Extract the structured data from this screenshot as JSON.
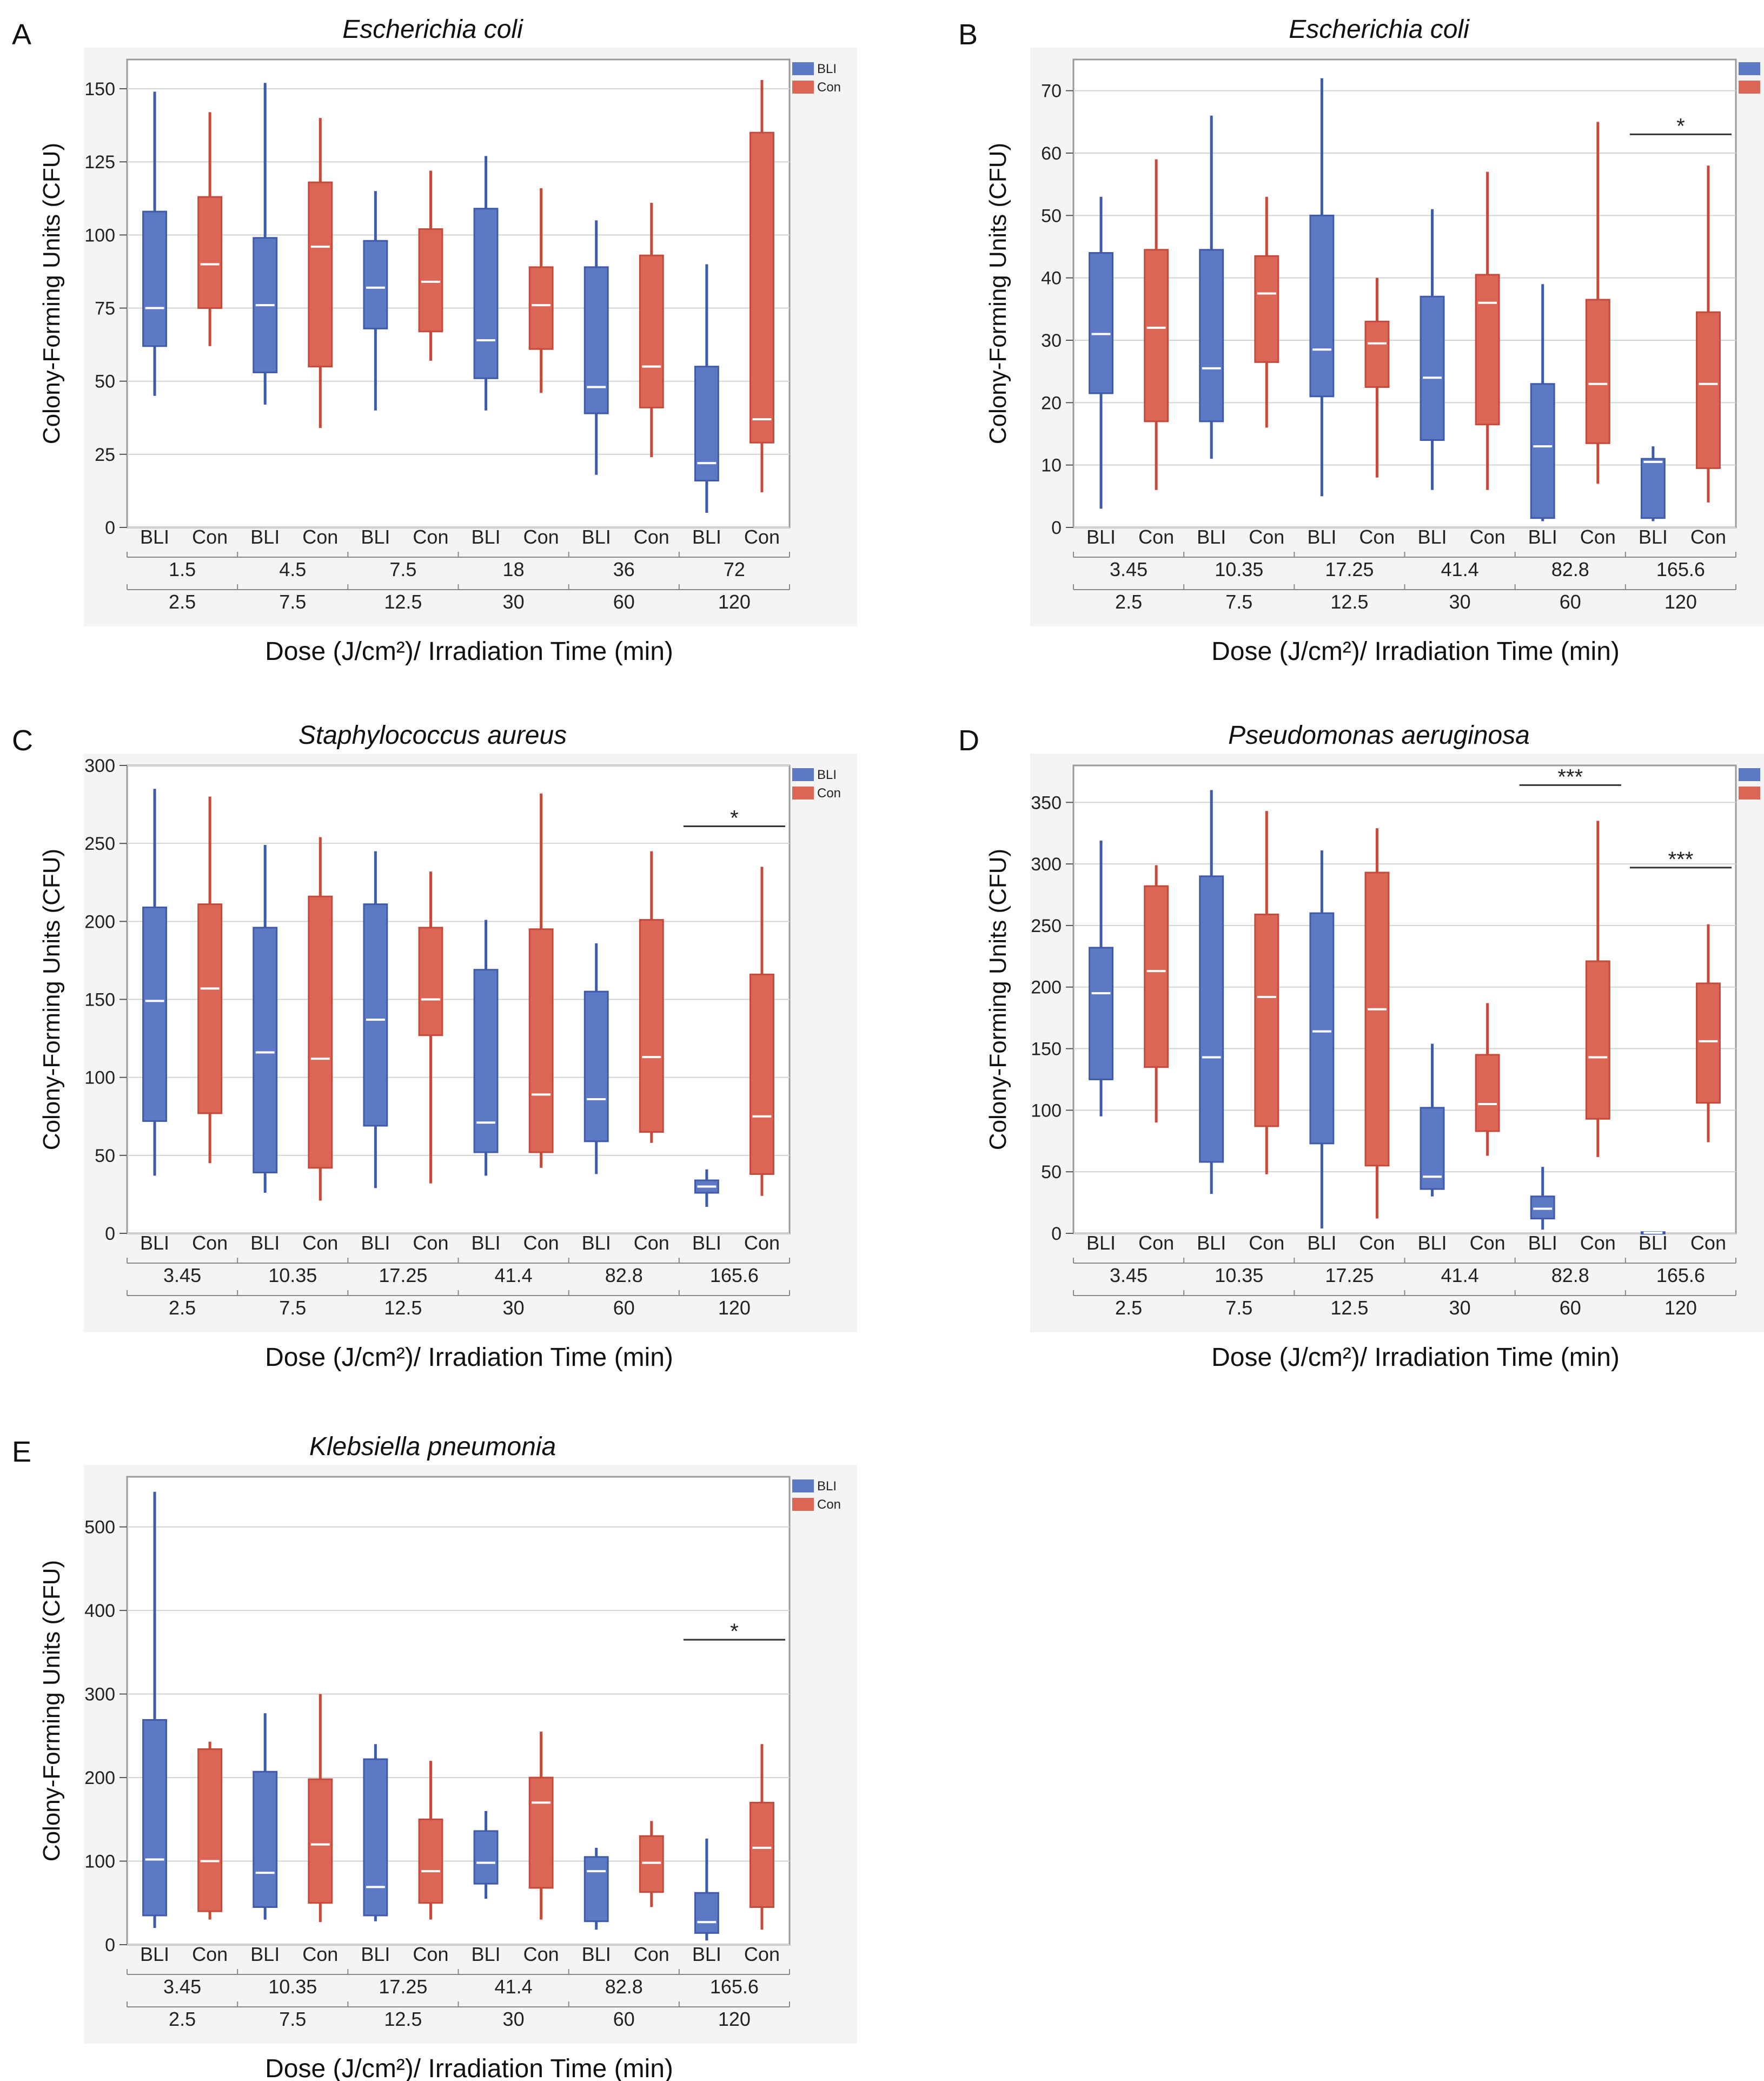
{
  "figure": {
    "group_labels": [
      "BLI",
      "Con"
    ],
    "colors": {
      "BLI": "#5d78c4",
      "Con": "#dc6656",
      "BLI_stroke": "#3f5aa8",
      "Con_stroke": "#c44a3b",
      "median": "#ffffff",
      "plot_bg": "#ffffff",
      "panel_bg": "#f4f4f4",
      "grid": "#d2d2d2"
    }
  },
  "chart_data": [
    {
      "panel": "A",
      "type": "box",
      "title": "Escherichia coli",
      "ylabel": "Colony-Forming Units (CFU)",
      "xlabel": "Dose (J/cm²)/ Irradiation Time (min)",
      "ylim": [
        0,
        160
      ],
      "yticks": [
        0,
        25,
        50,
        75,
        100,
        125,
        150
      ],
      "legend": [
        "BLI",
        "Con"
      ],
      "dose_labels": [
        "1.5",
        "4.5",
        "7.5",
        "18",
        "36",
        "72"
      ],
      "time_labels": [
        "2.5",
        "7.5",
        "12.5",
        "30",
        "60",
        "120"
      ],
      "boxes": [
        {
          "group": "BLI",
          "min": 45,
          "q1": 62,
          "median": 75,
          "q3": 108,
          "max": 149
        },
        {
          "group": "Con",
          "min": 62,
          "q1": 75,
          "median": 90,
          "q3": 113,
          "max": 142
        },
        {
          "group": "BLI",
          "min": 42,
          "q1": 53,
          "median": 76,
          "q3": 99,
          "max": 152
        },
        {
          "group": "Con",
          "min": 34,
          "q1": 55,
          "median": 96,
          "q3": 118,
          "max": 140
        },
        {
          "group": "BLI",
          "min": 40,
          "q1": 68,
          "median": 82,
          "q3": 98,
          "max": 115
        },
        {
          "group": "Con",
          "min": 57,
          "q1": 67,
          "median": 84,
          "q3": 102,
          "max": 122
        },
        {
          "group": "BLI",
          "min": 40,
          "q1": 51,
          "median": 64,
          "q3": 109,
          "max": 127
        },
        {
          "group": "Con",
          "min": 46,
          "q1": 61,
          "median": 76,
          "q3": 89,
          "max": 116
        },
        {
          "group": "BLI",
          "min": 18,
          "q1": 39,
          "median": 48,
          "q3": 89,
          "max": 105
        },
        {
          "group": "Con",
          "min": 24,
          "q1": 41,
          "median": 55,
          "q3": 93,
          "max": 111
        },
        {
          "group": "BLI",
          "min": 5,
          "q1": 16,
          "median": 22,
          "q3": 55,
          "max": 90
        },
        {
          "group": "Con",
          "min": 12,
          "q1": 29,
          "median": 37,
          "q3": 135,
          "max": 153
        }
      ],
      "significance": []
    },
    {
      "panel": "B",
      "type": "box",
      "title": "Escherichia coli",
      "ylabel": "Colony-Forming Units (CFU)",
      "xlabel": "Dose (J/cm²)/ Irradiation Time (min)",
      "ylim": [
        0,
        75
      ],
      "yticks": [
        0,
        10,
        20,
        30,
        40,
        50,
        60,
        70
      ],
      "legend": [
        "BLI",
        "Con"
      ],
      "dose_labels": [
        "3.45",
        "10.35",
        "17.25",
        "41.4",
        "82.8",
        "165.6"
      ],
      "time_labels": [
        "2.5",
        "7.5",
        "12.5",
        "30",
        "60",
        "120"
      ],
      "boxes": [
        {
          "group": "BLI",
          "min": 3,
          "q1": 21.5,
          "median": 31,
          "q3": 44,
          "max": 53
        },
        {
          "group": "Con",
          "min": 6,
          "q1": 17,
          "median": 32,
          "q3": 44.5,
          "max": 59
        },
        {
          "group": "BLI",
          "min": 11,
          "q1": 17,
          "median": 25.5,
          "q3": 44.5,
          "max": 66
        },
        {
          "group": "Con",
          "min": 16,
          "q1": 26.5,
          "median": 37.5,
          "q3": 43.5,
          "max": 53
        },
        {
          "group": "BLI",
          "min": 5,
          "q1": 21,
          "median": 28.5,
          "q3": 50,
          "max": 72
        },
        {
          "group": "Con",
          "min": 8,
          "q1": 22.5,
          "median": 29.5,
          "q3": 33,
          "max": 40
        },
        {
          "group": "BLI",
          "min": 6,
          "q1": 14,
          "median": 24,
          "q3": 37,
          "max": 51
        },
        {
          "group": "Con",
          "min": 6,
          "q1": 16.5,
          "median": 36,
          "q3": 40.5,
          "max": 57
        },
        {
          "group": "BLI",
          "min": 1,
          "q1": 1.5,
          "median": 13,
          "q3": 23,
          "max": 39
        },
        {
          "group": "Con",
          "min": 7,
          "q1": 13.5,
          "median": 23,
          "q3": 36.5,
          "max": 65
        },
        {
          "group": "BLI",
          "min": 1,
          "q1": 1.5,
          "median": 10.5,
          "q3": 11,
          "max": 13
        },
        {
          "group": "Con",
          "min": 4,
          "q1": 9.5,
          "median": 23,
          "q3": 34.5,
          "max": 58
        }
      ],
      "significance": [
        {
          "pair": 5,
          "value": 63,
          "label": "*"
        }
      ]
    },
    {
      "panel": "C",
      "type": "box",
      "title": "Staphylococcus aureus",
      "ylabel": "Colony-Forming Units (CFU)",
      "xlabel": "Dose (J/cm²)/ Irradiation Time (min)",
      "ylim": [
        0,
        300
      ],
      "yticks": [
        0,
        50,
        100,
        150,
        200,
        250,
        300
      ],
      "legend": [
        "BLI",
        "Con"
      ],
      "dose_labels": [
        "3.45",
        "10.35",
        "17.25",
        "41.4",
        "82.8",
        "165.6"
      ],
      "time_labels": [
        "2.5",
        "7.5",
        "12.5",
        "30",
        "60",
        "120"
      ],
      "boxes": [
        {
          "group": "BLI",
          "min": 37,
          "q1": 72,
          "median": 149,
          "q3": 209,
          "max": 285
        },
        {
          "group": "Con",
          "min": 45,
          "q1": 77,
          "median": 157,
          "q3": 211,
          "max": 280
        },
        {
          "group": "BLI",
          "min": 26,
          "q1": 39,
          "median": 116,
          "q3": 196,
          "max": 249
        },
        {
          "group": "Con",
          "min": 21,
          "q1": 42,
          "median": 112,
          "q3": 216,
          "max": 254
        },
        {
          "group": "BLI",
          "min": 29,
          "q1": 69,
          "median": 137,
          "q3": 211,
          "max": 245
        },
        {
          "group": "Con",
          "min": 32,
          "q1": 127,
          "median": 150,
          "q3": 196,
          "max": 232
        },
        {
          "group": "BLI",
          "min": 37,
          "q1": 52,
          "median": 71,
          "q3": 169,
          "max": 201
        },
        {
          "group": "Con",
          "min": 42,
          "q1": 52,
          "median": 89,
          "q3": 195,
          "max": 282
        },
        {
          "group": "BLI",
          "min": 38,
          "q1": 59,
          "median": 86,
          "q3": 155,
          "max": 186
        },
        {
          "group": "Con",
          "min": 58,
          "q1": 65,
          "median": 113,
          "q3": 201,
          "max": 245
        },
        {
          "group": "BLI",
          "min": 17,
          "q1": 26,
          "median": 30,
          "q3": 34,
          "max": 41
        },
        {
          "group": "Con",
          "min": 24,
          "q1": 38,
          "median": 75,
          "q3": 166,
          "max": 235
        }
      ],
      "significance": [
        {
          "pair": 5,
          "value": 261,
          "label": "*"
        }
      ]
    },
    {
      "panel": "D",
      "type": "box",
      "title": "Pseudomonas aeruginosa",
      "ylabel": "Colony-Forming Units (CFU)",
      "xlabel": "Dose (J/cm²)/ Irradiation Time (min)",
      "ylim": [
        0,
        380
      ],
      "yticks": [
        0,
        50,
        100,
        150,
        200,
        250,
        300,
        350
      ],
      "legend": [
        "BLI",
        "Con"
      ],
      "dose_labels": [
        "3.45",
        "10.35",
        "17.25",
        "41.4",
        "82.8",
        "165.6"
      ],
      "time_labels": [
        "2.5",
        "7.5",
        "12.5",
        "30",
        "60",
        "120"
      ],
      "boxes": [
        {
          "group": "BLI",
          "min": 95,
          "q1": 125,
          "median": 195,
          "q3": 232,
          "max": 319
        },
        {
          "group": "Con",
          "min": 90,
          "q1": 135,
          "median": 213,
          "q3": 282,
          "max": 299
        },
        {
          "group": "BLI",
          "min": 32,
          "q1": 58,
          "median": 143,
          "q3": 290,
          "max": 360
        },
        {
          "group": "Con",
          "min": 48,
          "q1": 87,
          "median": 192,
          "q3": 259,
          "max": 343
        },
        {
          "group": "BLI",
          "min": 4,
          "q1": 73,
          "median": 164,
          "q3": 260,
          "max": 311
        },
        {
          "group": "Con",
          "min": 12,
          "q1": 55,
          "median": 182,
          "q3": 293,
          "max": 329
        },
        {
          "group": "BLI",
          "min": 30,
          "q1": 36,
          "median": 46,
          "q3": 102,
          "max": 154
        },
        {
          "group": "Con",
          "min": 63,
          "q1": 83,
          "median": 105,
          "q3": 145,
          "max": 187
        },
        {
          "group": "BLI",
          "min": 3,
          "q1": 12,
          "median": 20,
          "q3": 30,
          "max": 54
        },
        {
          "group": "Con",
          "min": 62,
          "q1": 93,
          "median": 143,
          "q3": 221,
          "max": 335
        },
        {
          "group": "BLI",
          "min": 0,
          "q1": 0,
          "median": 0.5,
          "q3": 1,
          "max": 1
        },
        {
          "group": "Con",
          "min": 74,
          "q1": 106,
          "median": 156,
          "q3": 203,
          "max": 251
        }
      ],
      "significance": [
        {
          "pair": 4,
          "value": 364,
          "label": "***"
        },
        {
          "pair": 5,
          "value": 297,
          "label": "***"
        }
      ]
    },
    {
      "panel": "E",
      "type": "box",
      "title": "Klebsiella pneumonia",
      "ylabel": "Colony-Forming Units (CFU)",
      "xlabel": "Dose (J/cm²)/ Irradiation Time (min)",
      "ylim": [
        0,
        560
      ],
      "yticks": [
        0,
        100,
        200,
        300,
        400,
        500
      ],
      "legend": [
        "BLI",
        "Con"
      ],
      "dose_labels": [
        "3.45",
        "10.35",
        "17.25",
        "41.4",
        "82.8",
        "165.6"
      ],
      "time_labels": [
        "2.5",
        "7.5",
        "12.5",
        "30",
        "60",
        "120"
      ],
      "boxes": [
        {
          "group": "BLI",
          "min": 20,
          "q1": 35,
          "median": 102,
          "q3": 269,
          "max": 542
        },
        {
          "group": "Con",
          "min": 30,
          "q1": 40,
          "median": 100,
          "q3": 234,
          "max": 243
        },
        {
          "group": "BLI",
          "min": 30,
          "q1": 45,
          "median": 86,
          "q3": 207,
          "max": 277
        },
        {
          "group": "Con",
          "min": 27,
          "q1": 50,
          "median": 120,
          "q3": 198,
          "max": 300
        },
        {
          "group": "BLI",
          "min": 28,
          "q1": 35,
          "median": 69,
          "q3": 222,
          "max": 240
        },
        {
          "group": "Con",
          "min": 30,
          "q1": 50,
          "median": 88,
          "q3": 150,
          "max": 220
        },
        {
          "group": "BLI",
          "min": 55,
          "q1": 73,
          "median": 98,
          "q3": 136,
          "max": 160
        },
        {
          "group": "Con",
          "min": 30,
          "q1": 68,
          "median": 170,
          "q3": 200,
          "max": 255
        },
        {
          "group": "BLI",
          "min": 18,
          "q1": 28,
          "median": 88,
          "q3": 105,
          "max": 116
        },
        {
          "group": "Con",
          "min": 45,
          "q1": 63,
          "median": 98,
          "q3": 130,
          "max": 148
        },
        {
          "group": "BLI",
          "min": 5,
          "q1": 14,
          "median": 27,
          "q3": 62,
          "max": 127
        },
        {
          "group": "Con",
          "min": 18,
          "q1": 45,
          "median": 116,
          "q3": 170,
          "max": 240
        }
      ],
      "significance": [
        {
          "pair": 5,
          "value": 365,
          "label": "*"
        }
      ]
    }
  ]
}
